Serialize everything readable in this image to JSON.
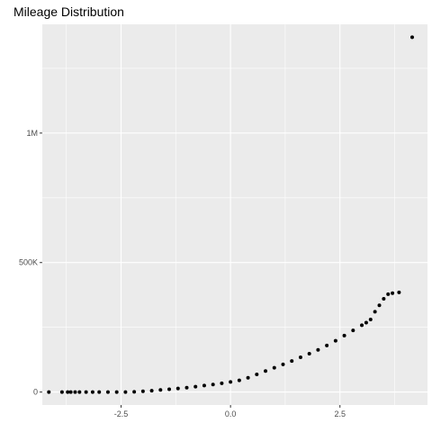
{
  "chart_data": {
    "type": "scatter",
    "title": "Mileage Distribution",
    "xlabel": "",
    "ylabel": "",
    "xlim": [
      -4.3,
      4.5
    ],
    "ylim": [
      -50000,
      1420000
    ],
    "grid": true,
    "x_ticks": [
      {
        "value": -2.5,
        "label": "-2.5"
      },
      {
        "value": 0.0,
        "label": "0.0"
      },
      {
        "value": 2.5,
        "label": "2.5"
      }
    ],
    "y_ticks": [
      {
        "value": 0,
        "label": "0"
      },
      {
        "value": 500000,
        "label": "500K"
      },
      {
        "value": 1000000,
        "label": "1M"
      }
    ],
    "points": [
      {
        "x": -4.15,
        "y": 0
      },
      {
        "x": -3.85,
        "y": 0
      },
      {
        "x": -3.72,
        "y": 0
      },
      {
        "x": -3.65,
        "y": 0
      },
      {
        "x": -3.55,
        "y": 0
      },
      {
        "x": -3.45,
        "y": 0
      },
      {
        "x": -3.3,
        "y": 0
      },
      {
        "x": -3.15,
        "y": 0
      },
      {
        "x": -3.0,
        "y": 0
      },
      {
        "x": -2.8,
        "y": 0
      },
      {
        "x": -2.6,
        "y": 0
      },
      {
        "x": -2.4,
        "y": 0
      },
      {
        "x": -2.2,
        "y": 1000
      },
      {
        "x": -2.0,
        "y": 3000
      },
      {
        "x": -1.8,
        "y": 5000
      },
      {
        "x": -1.6,
        "y": 8000
      },
      {
        "x": -1.4,
        "y": 11000
      },
      {
        "x": -1.2,
        "y": 14000
      },
      {
        "x": -1.0,
        "y": 17000
      },
      {
        "x": -0.8,
        "y": 21000
      },
      {
        "x": -0.6,
        "y": 25000
      },
      {
        "x": -0.4,
        "y": 29000
      },
      {
        "x": -0.2,
        "y": 34000
      },
      {
        "x": 0.0,
        "y": 39000
      },
      {
        "x": 0.2,
        "y": 45000
      },
      {
        "x": 0.4,
        "y": 55000
      },
      {
        "x": 0.6,
        "y": 68000
      },
      {
        "x": 0.8,
        "y": 81000
      },
      {
        "x": 1.0,
        "y": 94000
      },
      {
        "x": 1.2,
        "y": 107000
      },
      {
        "x": 1.4,
        "y": 120000
      },
      {
        "x": 1.6,
        "y": 134000
      },
      {
        "x": 1.8,
        "y": 148000
      },
      {
        "x": 2.0,
        "y": 163000
      },
      {
        "x": 2.2,
        "y": 180000
      },
      {
        "x": 2.4,
        "y": 198000
      },
      {
        "x": 2.6,
        "y": 218000
      },
      {
        "x": 2.8,
        "y": 238000
      },
      {
        "x": 3.0,
        "y": 258000
      },
      {
        "x": 3.1,
        "y": 268000
      },
      {
        "x": 3.2,
        "y": 280000
      },
      {
        "x": 3.3,
        "y": 310000
      },
      {
        "x": 3.4,
        "y": 335000
      },
      {
        "x": 3.5,
        "y": 360000
      },
      {
        "x": 3.6,
        "y": 378000
      },
      {
        "x": 3.7,
        "y": 382000
      },
      {
        "x": 3.85,
        "y": 385000
      },
      {
        "x": 4.15,
        "y": 1370000
      }
    ]
  }
}
